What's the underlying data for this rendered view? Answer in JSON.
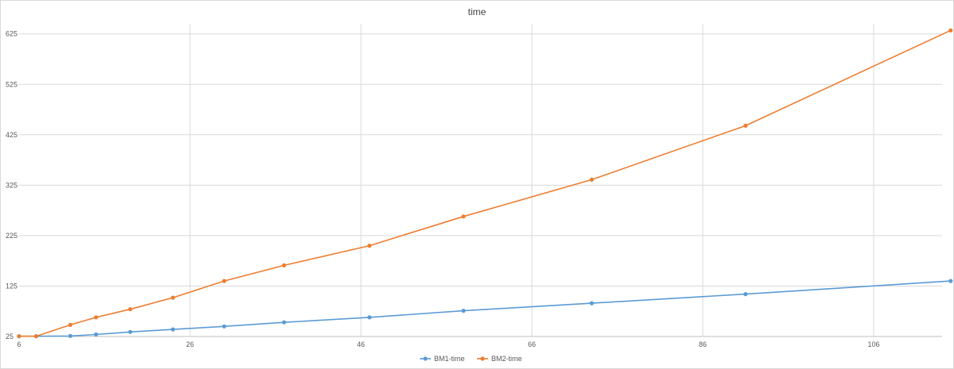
{
  "chart_data": {
    "type": "scatter",
    "title": "time",
    "xlabel": "",
    "ylabel": "",
    "xlim": [
      6,
      114
    ],
    "ylim": [
      25,
      645
    ],
    "x_ticks": [
      6,
      26,
      46,
      66,
      86,
      106
    ],
    "y_ticks": [
      25,
      125,
      225,
      325,
      425,
      525,
      625
    ],
    "grid": true,
    "legend_position": "bottom",
    "series": [
      {
        "name": "BM1-time",
        "color": "#5B9BD5",
        "points": [
          [
            6,
            25.5
          ],
          [
            8,
            25.5
          ],
          [
            12,
            26
          ],
          [
            15,
            29
          ],
          [
            19,
            34
          ],
          [
            24,
            39
          ],
          [
            30,
            45
          ],
          [
            37,
            53
          ],
          [
            47,
            63
          ],
          [
            58,
            76
          ],
          [
            73,
            91
          ],
          [
            91,
            109
          ],
          [
            115,
            135
          ]
        ]
      },
      {
        "name": "BM2-time",
        "color": "#ED7D31",
        "points": [
          [
            6,
            25.5
          ],
          [
            8,
            25.5
          ],
          [
            12,
            48
          ],
          [
            15,
            63
          ],
          [
            19,
            79
          ],
          [
            24,
            102
          ],
          [
            30,
            135
          ],
          [
            37,
            166
          ],
          [
            47,
            205
          ],
          [
            58,
            263
          ],
          [
            73,
            336
          ],
          [
            91,
            443
          ],
          [
            115,
            632
          ]
        ]
      }
    ]
  }
}
